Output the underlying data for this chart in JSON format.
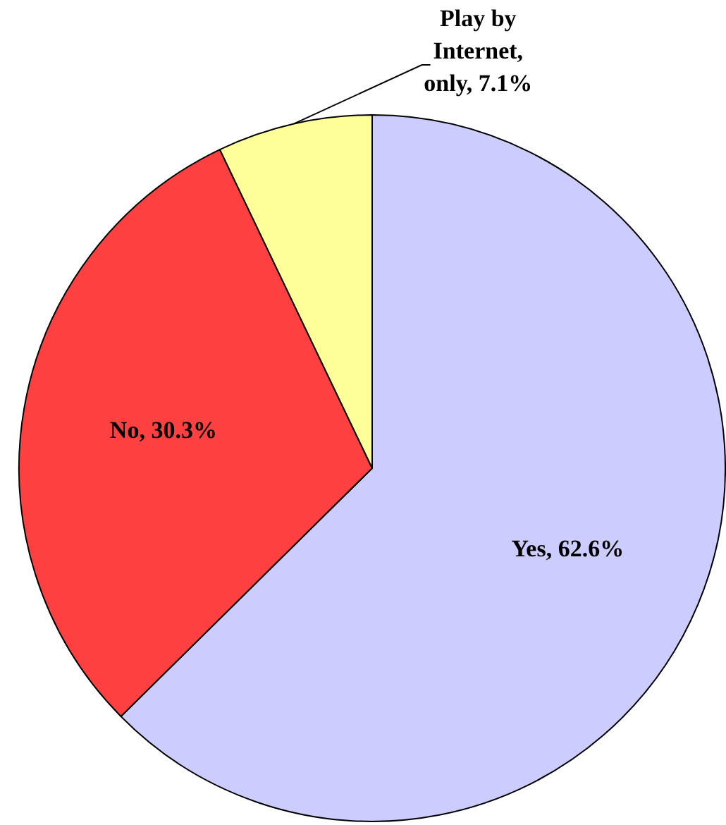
{
  "chart_data": {
    "type": "pie",
    "categories": [
      "Yes",
      "No",
      "Play by Internet, only"
    ],
    "values": [
      62.6,
      30.3,
      7.1
    ],
    "colors": [
      "#ccccff",
      "#ff4040",
      "#ffff99"
    ],
    "value_labels": [
      "62.6%",
      "30.3%",
      "7.1%"
    ],
    "legend": false
  }
}
